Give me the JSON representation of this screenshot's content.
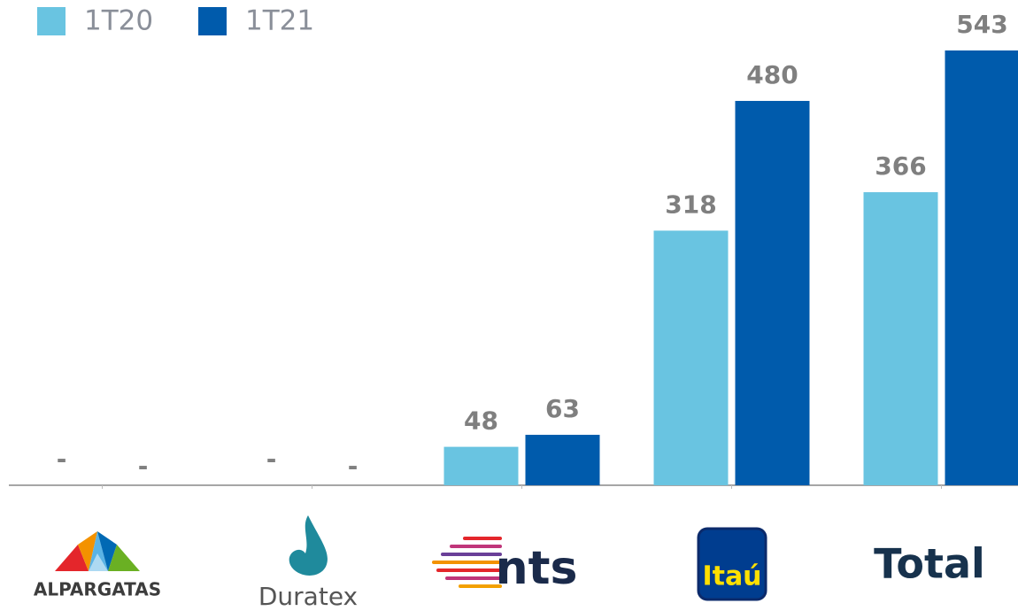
{
  "chart_data": {
    "type": "bar",
    "categories": [
      "ALPARGATAS",
      "Duratex",
      "nts",
      "Itaú",
      "Total"
    ],
    "series": [
      {
        "name": "1T20",
        "color": "#69c4e1",
        "values": [
          null,
          null,
          48,
          318,
          366
        ],
        "value_labels": [
          "-",
          "-",
          "48",
          "318",
          "366"
        ]
      },
      {
        "name": "1T21",
        "color": "#005bac",
        "values": [
          null,
          null,
          63,
          480,
          543
        ],
        "value_labels": [
          "-",
          "-",
          "63",
          "480",
          "543"
        ]
      }
    ],
    "ylim": [
      0,
      543
    ]
  }
}
